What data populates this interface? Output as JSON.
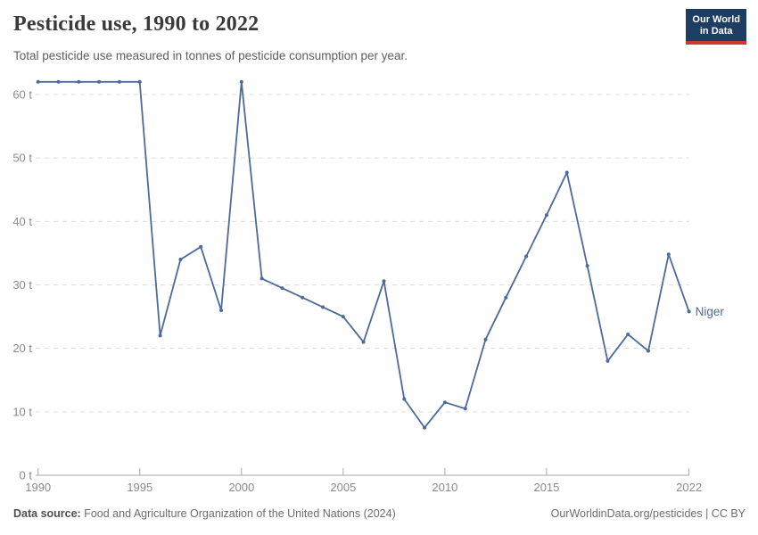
{
  "header": {
    "title": "Pesticide use, 1990 to 2022",
    "subtitle": "Total pesticide use measured in tonnes of pesticide consumption per year.",
    "logo": {
      "line1": "Our World",
      "line2": "in Data"
    }
  },
  "chart_data": {
    "type": "line",
    "title": "Pesticide use, 1990 to 2022",
    "xlabel": "",
    "ylabel": "",
    "xlim": [
      1990,
      2022
    ],
    "ylim": [
      0,
      63
    ],
    "x_ticks": [
      1990,
      1995,
      2000,
      2005,
      2010,
      2015,
      2022
    ],
    "y_ticks": [
      0,
      10,
      20,
      30,
      40,
      50,
      60
    ],
    "y_tick_suffix": " t",
    "grid": "horizontal-dashed",
    "legend_position": "end-of-line-label",
    "series": [
      {
        "name": "Niger",
        "color": "#4C6A9B",
        "x": [
          1990,
          1991,
          1992,
          1993,
          1994,
          1995,
          1996,
          1997,
          1998,
          1999,
          2000,
          2001,
          2002,
          2003,
          2004,
          2005,
          2006,
          2007,
          2008,
          2009,
          2010,
          2011,
          2012,
          2013,
          2014,
          2015,
          2016,
          2017,
          2018,
          2019,
          2020,
          2021,
          2022
        ],
        "values": [
          62,
          62,
          62,
          62,
          62,
          62,
          22,
          34,
          36,
          26,
          62,
          31,
          29.5,
          28,
          26.5,
          25,
          21,
          30.6,
          12,
          7.5,
          11.5,
          10.5,
          21.4,
          28,
          34.5,
          41,
          47.7,
          33,
          18,
          22.2,
          19.6,
          34.8,
          25.8
        ]
      }
    ]
  },
  "footer": {
    "datasource_label": "Data source:",
    "datasource_text": "Food and Agriculture Organization of the United Nations (2024)",
    "link_text": "OurWorldinData.org/pesticides",
    "license_suffix": " | CC BY"
  },
  "colors": {
    "line": "#4C6A9B",
    "grid": "#dcdcdc",
    "axis": "#a9a9a9",
    "tick_label": "#8b8b8b",
    "title": "#3a3a3a",
    "subtitle": "#5e5e5e",
    "footer_text": "#6e6e6e",
    "logo_bg": "#1d3d63",
    "logo_stripe": "#cc3931"
  }
}
